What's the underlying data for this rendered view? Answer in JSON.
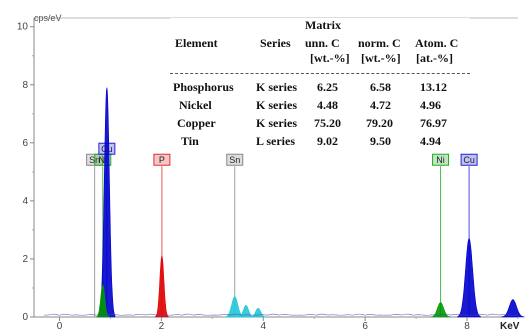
{
  "chart_data": {
    "type": "line",
    "ylabel": "cps/eV",
    "xlabel": "KeV",
    "xlim": [
      -0.5,
      9.0
    ],
    "ylim": [
      0,
      10.3
    ],
    "x_ticks": [
      0,
      2,
      4,
      6,
      8
    ],
    "y_ticks": [
      0,
      2,
      4,
      6,
      8,
      10
    ],
    "grid": false,
    "series": [
      {
        "name": "Cu",
        "color": "#0000cc",
        "peaks": [
          {
            "x": 0.93,
            "y": 7.9,
            "w": 0.05
          },
          {
            "x": 8.04,
            "y": 2.7,
            "w": 0.07
          },
          {
            "x": 8.9,
            "y": 0.6,
            "w": 0.07
          }
        ]
      },
      {
        "name": "Ni",
        "color": "#009900",
        "peaks": [
          {
            "x": 0.85,
            "y": 1.1,
            "w": 0.04
          },
          {
            "x": 7.48,
            "y": 0.5,
            "w": 0.06
          }
        ]
      },
      {
        "name": "P",
        "color": "#e00000",
        "peaks": [
          {
            "x": 2.01,
            "y": 2.1,
            "w": 0.04
          }
        ]
      },
      {
        "name": "Sn",
        "color": "#22c8d8",
        "peaks": [
          {
            "x": 3.44,
            "y": 0.7,
            "w": 0.06
          },
          {
            "x": 3.66,
            "y": 0.4,
            "w": 0.05
          },
          {
            "x": 3.9,
            "y": 0.3,
            "w": 0.05
          }
        ]
      }
    ],
    "element_markers": [
      {
        "label": "Sn",
        "x": 0.69,
        "color": "#888888"
      },
      {
        "label": "Ni",
        "x": 0.85,
        "color": "#22aa22"
      },
      {
        "label": "Cu",
        "x": 0.93,
        "color": "#2222dd"
      },
      {
        "label": "P",
        "x": 2.01,
        "color": "#e03030"
      },
      {
        "label": "Sn",
        "x": 3.44,
        "color": "#888888"
      },
      {
        "label": "Ni",
        "x": 7.48,
        "color": "#22aa22"
      },
      {
        "label": "Cu",
        "x": 8.04,
        "color": "#2222dd"
      }
    ],
    "table": {
      "header": {
        "matrix": "Matrix",
        "element": "Element",
        "series": "Series",
        "unn_c": "unn. C",
        "norm_c": "norm. C",
        "atom_c": "Atom. C",
        "unn_unit": "[wt.-%]",
        "norm_unit": "[wt.-%]",
        "atom_unit": "[at.-%]"
      },
      "rows": [
        {
          "element": "Phosphorus",
          "series": "K series",
          "unn": "6.25",
          "norm": "6.58",
          "atom": "13.12"
        },
        {
          "element": "Nickel",
          "series": "K series",
          "unn": "4.48",
          "norm": "4.72",
          "atom": "4.96"
        },
        {
          "element": "Copper",
          "series": "K series",
          "unn": "75.20",
          "norm": "79.20",
          "atom": "76.97"
        },
        {
          "element": "Tin",
          "series": "L series",
          "unn": "9.02",
          "norm": "9.50",
          "atom": "4.94"
        }
      ]
    }
  }
}
